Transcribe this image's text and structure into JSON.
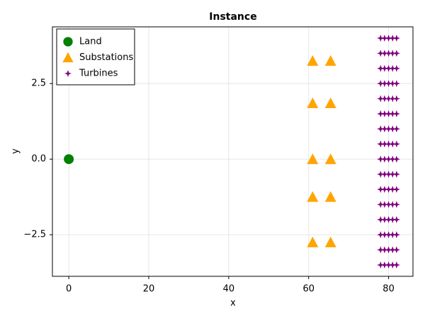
{
  "chart_data": {
    "type": "scatter",
    "title": "Instance",
    "x_label": "x",
    "y_label": "y",
    "xlim": [
      -4.1,
      86.1
    ],
    "ylim": [
      -3.875,
      4.375
    ],
    "xticks": [
      0,
      20,
      40,
      60,
      80
    ],
    "yticks": [
      {
        "value": -2.5,
        "label": "−2.5"
      },
      {
        "value": 0,
        "label": "0.0"
      },
      {
        "value": 2.5,
        "label": "2.5"
      }
    ],
    "grid": true,
    "legend": "top-left",
    "series": [
      {
        "name": "Land",
        "color": "#008000",
        "marker": "circle",
        "x": [
          0
        ],
        "y": [
          0
        ]
      },
      {
        "name": "Substations",
        "color": "#ffa500",
        "marker": "triangle",
        "x": [
          61,
          65.5,
          61,
          65.5,
          61,
          65.5,
          61,
          65.5,
          61,
          65.5
        ],
        "y": [
          3.25,
          3.25,
          1.85,
          1.85,
          0,
          0,
          -1.25,
          -1.25,
          -2.75,
          -2.75
        ]
      },
      {
        "name": "Turbines",
        "color": "#800080",
        "marker": "star4",
        "x": [
          78,
          79,
          80,
          81,
          82,
          78,
          79,
          80,
          81,
          82,
          78,
          79,
          80,
          81,
          82,
          78,
          79,
          80,
          81,
          82,
          78,
          79,
          80,
          81,
          82,
          78,
          79,
          80,
          81,
          82,
          78,
          79,
          80,
          81,
          82,
          78,
          79,
          80,
          81,
          82,
          78,
          79,
          80,
          81,
          82,
          78,
          79,
          80,
          81,
          82,
          78,
          79,
          80,
          81,
          82,
          78,
          79,
          80,
          81,
          82,
          78,
          79,
          80,
          81,
          82,
          78,
          79,
          80,
          81,
          82,
          78,
          79,
          80,
          81,
          82,
          78,
          79,
          80,
          81,
          82
        ],
        "y": [
          4,
          4,
          4,
          4,
          4,
          3.5,
          3.5,
          3.5,
          3.5,
          3.5,
          3,
          3,
          3,
          3,
          3,
          2.5,
          2.5,
          2.5,
          2.5,
          2.5,
          2,
          2,
          2,
          2,
          2,
          1.5,
          1.5,
          1.5,
          1.5,
          1.5,
          1,
          1,
          1,
          1,
          1,
          0.5,
          0.5,
          0.5,
          0.5,
          0.5,
          0,
          0,
          0,
          0,
          0,
          -0.5,
          -0.5,
          -0.5,
          -0.5,
          -0.5,
          -1,
          -1,
          -1,
          -1,
          -1,
          -1.5,
          -1.5,
          -1.5,
          -1.5,
          -1.5,
          -2,
          -2,
          -2,
          -2,
          -2,
          -2.5,
          -2.5,
          -2.5,
          -2.5,
          -2.5,
          -3,
          -3,
          -3,
          -3,
          -3,
          -3.5,
          -3.5,
          -3.5,
          -3.5,
          -3.5
        ]
      }
    ]
  }
}
